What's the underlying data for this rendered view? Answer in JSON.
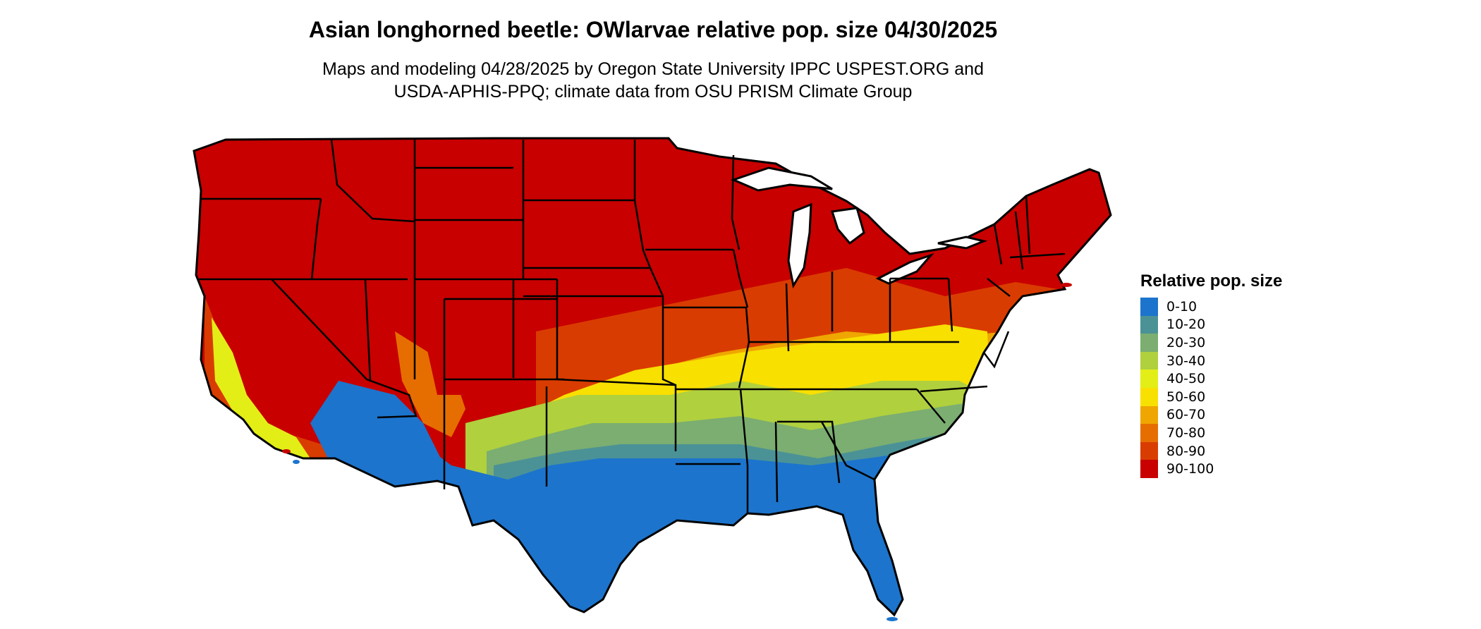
{
  "title": "Asian longhorned beetle: OWlarvae relative pop. size 04/30/2025",
  "subtitle_line1": "Maps and modeling 04/28/2025 by Oregon State University IPPC USPEST.ORG and",
  "subtitle_line2": "USDA-APHIS-PPQ; climate data from OSU PRISM Climate Group",
  "legend": {
    "title": "Relative pop. size",
    "items": [
      {
        "label": "0-10",
        "color": "#1c74cc"
      },
      {
        "label": "10-20",
        "color": "#4b9297"
      },
      {
        "label": "20-30",
        "color": "#7bae70"
      },
      {
        "label": "30-40",
        "color": "#b0d03e"
      },
      {
        "label": "40-50",
        "color": "#e3ee16"
      },
      {
        "label": "50-60",
        "color": "#f8e000"
      },
      {
        "label": "60-70",
        "color": "#efa600"
      },
      {
        "label": "70-80",
        "color": "#e66e00"
      },
      {
        "label": "80-90",
        "color": "#d93c00"
      },
      {
        "label": "90-100",
        "color": "#c80000"
      }
    ]
  },
  "map": {
    "background_color": "#ffffff",
    "border_color": "#000000"
  }
}
